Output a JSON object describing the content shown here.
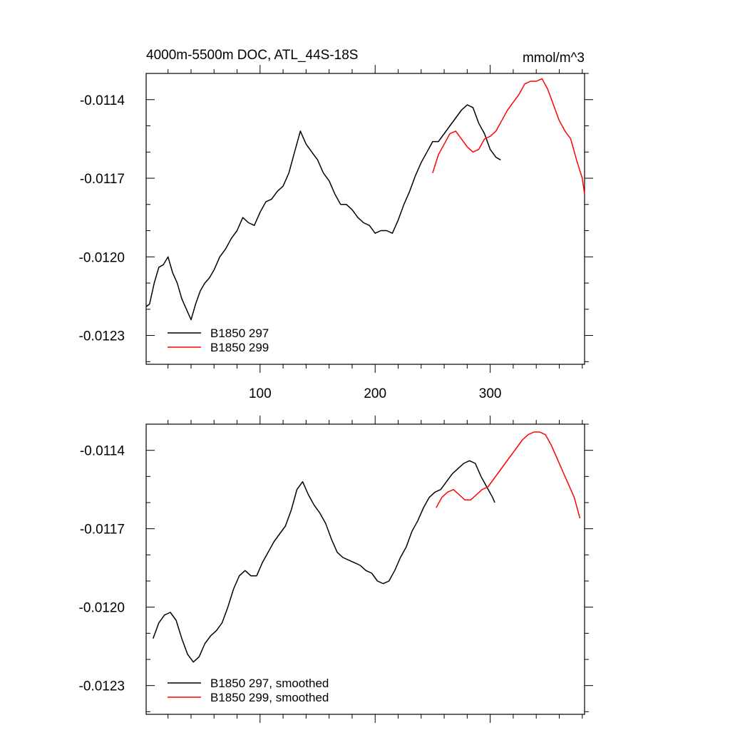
{
  "colors": {
    "series_297": "#000000",
    "series_299": "#ff0000",
    "background": "#ffffff"
  },
  "chart_data": [
    {
      "type": "line",
      "title": "4000m-5500m DOC, ATL_44S-18S",
      "units": "mmol/m^3",
      "xlabel": "",
      "ylabel": "",
      "xlim": [
        1,
        382
      ],
      "ylim": [
        -0.01241,
        -0.0113
      ],
      "xticks": [
        100,
        200,
        300
      ],
      "xtick_labels": [
        "100",
        "200",
        "300"
      ],
      "yticks": [
        -0.0114,
        -0.0117,
        -0.012,
        -0.0123
      ],
      "ytick_labels": [
        "-0.0114",
        "-0.0117",
        "-0.0120",
        "-0.0123"
      ],
      "grid": false,
      "legend_position": "bottom-left",
      "series": [
        {
          "name": "B1850 297",
          "color": "#000000",
          "x": [
            1,
            4,
            8,
            12,
            16,
            20,
            24,
            28,
            32,
            36,
            40,
            44,
            48,
            52,
            56,
            60,
            65,
            70,
            75,
            80,
            85,
            90,
            95,
            100,
            105,
            110,
            115,
            120,
            125,
            130,
            135,
            140,
            145,
            150,
            155,
            160,
            165,
            170,
            175,
            180,
            185,
            190,
            195,
            200,
            205,
            210,
            215,
            220,
            225,
            230,
            235,
            240,
            245,
            250,
            255,
            260,
            265,
            270,
            275,
            280,
            285,
            290,
            295,
            300,
            305,
            309
          ],
          "y": [
            -0.01219,
            -0.01218,
            -0.0121,
            -0.01204,
            -0.01203,
            -0.012,
            -0.01206,
            -0.0121,
            -0.01216,
            -0.0122,
            -0.01224,
            -0.01218,
            -0.01213,
            -0.0121,
            -0.01208,
            -0.01205,
            -0.012,
            -0.01197,
            -0.01193,
            -0.0119,
            -0.01185,
            -0.01187,
            -0.01188,
            -0.01183,
            -0.01179,
            -0.01178,
            -0.01175,
            -0.01173,
            -0.01168,
            -0.0116,
            -0.01152,
            -0.01157,
            -0.0116,
            -0.01163,
            -0.01168,
            -0.01171,
            -0.01176,
            -0.0118,
            -0.0118,
            -0.01182,
            -0.01185,
            -0.01187,
            -0.01188,
            -0.01191,
            -0.0119,
            -0.0119,
            -0.01191,
            -0.01186,
            -0.0118,
            -0.01175,
            -0.01169,
            -0.01164,
            -0.0116,
            -0.01156,
            -0.01156,
            -0.01153,
            -0.0115,
            -0.01147,
            -0.01144,
            -0.01142,
            -0.01143,
            -0.01149,
            -0.01153,
            -0.01159,
            -0.01162,
            -0.01163
          ]
        },
        {
          "name": "B1850 299",
          "color": "#ff0000",
          "x": [
            250,
            255,
            260,
            265,
            270,
            275,
            280,
            285,
            290,
            295,
            300,
            305,
            310,
            315,
            320,
            325,
            330,
            335,
            340,
            345,
            350,
            355,
            360,
            365,
            370,
            375,
            380,
            382
          ],
          "y": [
            -0.01168,
            -0.01161,
            -0.01157,
            -0.01153,
            -0.01152,
            -0.01155,
            -0.01158,
            -0.0116,
            -0.01159,
            -0.01155,
            -0.01154,
            -0.01152,
            -0.01148,
            -0.01144,
            -0.01141,
            -0.01138,
            -0.01134,
            -0.01133,
            -0.01133,
            -0.01132,
            -0.01136,
            -0.01142,
            -0.01148,
            -0.01152,
            -0.01155,
            -0.01163,
            -0.0117,
            -0.01176
          ]
        }
      ]
    },
    {
      "type": "line",
      "title": "",
      "xlabel": "",
      "ylabel": "",
      "xlim": [
        1,
        382
      ],
      "ylim": [
        -0.01241,
        -0.0113
      ],
      "xticks": [
        100,
        200,
        300
      ],
      "yticks": [
        -0.0114,
        -0.0117,
        -0.012,
        -0.0123
      ],
      "ytick_labels": [
        "-0.0114",
        "-0.0117",
        "-0.0120",
        "-0.0123"
      ],
      "grid": false,
      "legend_position": "bottom-left",
      "series": [
        {
          "name": "B1850 297, smoothed",
          "color": "#000000",
          "x": [
            7,
            12,
            17,
            22,
            27,
            32,
            37,
            42,
            47,
            52,
            57,
            62,
            67,
            72,
            77,
            82,
            87,
            92,
            97,
            102,
            107,
            112,
            117,
            122,
            127,
            132,
            137,
            142,
            147,
            152,
            157,
            162,
            167,
            172,
            177,
            182,
            187,
            192,
            197,
            202,
            207,
            212,
            217,
            222,
            227,
            232,
            237,
            242,
            247,
            252,
            257,
            262,
            267,
            272,
            277,
            282,
            287,
            292,
            297,
            302,
            304
          ],
          "y": [
            -0.01212,
            -0.01206,
            -0.01203,
            -0.01202,
            -0.01205,
            -0.01212,
            -0.01218,
            -0.01221,
            -0.01219,
            -0.01214,
            -0.01211,
            -0.01209,
            -0.01206,
            -0.012,
            -0.01193,
            -0.01188,
            -0.01186,
            -0.01188,
            -0.01188,
            -0.01183,
            -0.01179,
            -0.01175,
            -0.01172,
            -0.01169,
            -0.01163,
            -0.01155,
            -0.01152,
            -0.01157,
            -0.01161,
            -0.01164,
            -0.01168,
            -0.01174,
            -0.01179,
            -0.01181,
            -0.01182,
            -0.01183,
            -0.01184,
            -0.01186,
            -0.01187,
            -0.0119,
            -0.01191,
            -0.0119,
            -0.01186,
            -0.01181,
            -0.01177,
            -0.01171,
            -0.01167,
            -0.01162,
            -0.01158,
            -0.01156,
            -0.01155,
            -0.01152,
            -0.01149,
            -0.01147,
            -0.01145,
            -0.01144,
            -0.01145,
            -0.0115,
            -0.01154,
            -0.01158,
            -0.0116
          ]
        },
        {
          "name": "B1850 299, smoothed",
          "color": "#ff0000",
          "x": [
            253,
            258,
            263,
            268,
            273,
            278,
            283,
            288,
            293,
            298,
            303,
            308,
            313,
            318,
            323,
            328,
            333,
            338,
            343,
            348,
            353,
            358,
            363,
            368,
            373,
            378
          ],
          "y": [
            -0.01162,
            -0.01158,
            -0.01156,
            -0.01155,
            -0.01157,
            -0.01159,
            -0.01159,
            -0.01157,
            -0.01155,
            -0.01154,
            -0.01151,
            -0.01148,
            -0.01145,
            -0.01142,
            -0.01139,
            -0.01136,
            -0.01134,
            -0.01133,
            -0.01133,
            -0.01134,
            -0.01138,
            -0.01143,
            -0.01148,
            -0.01153,
            -0.01158,
            -0.01166
          ]
        }
      ]
    }
  ]
}
